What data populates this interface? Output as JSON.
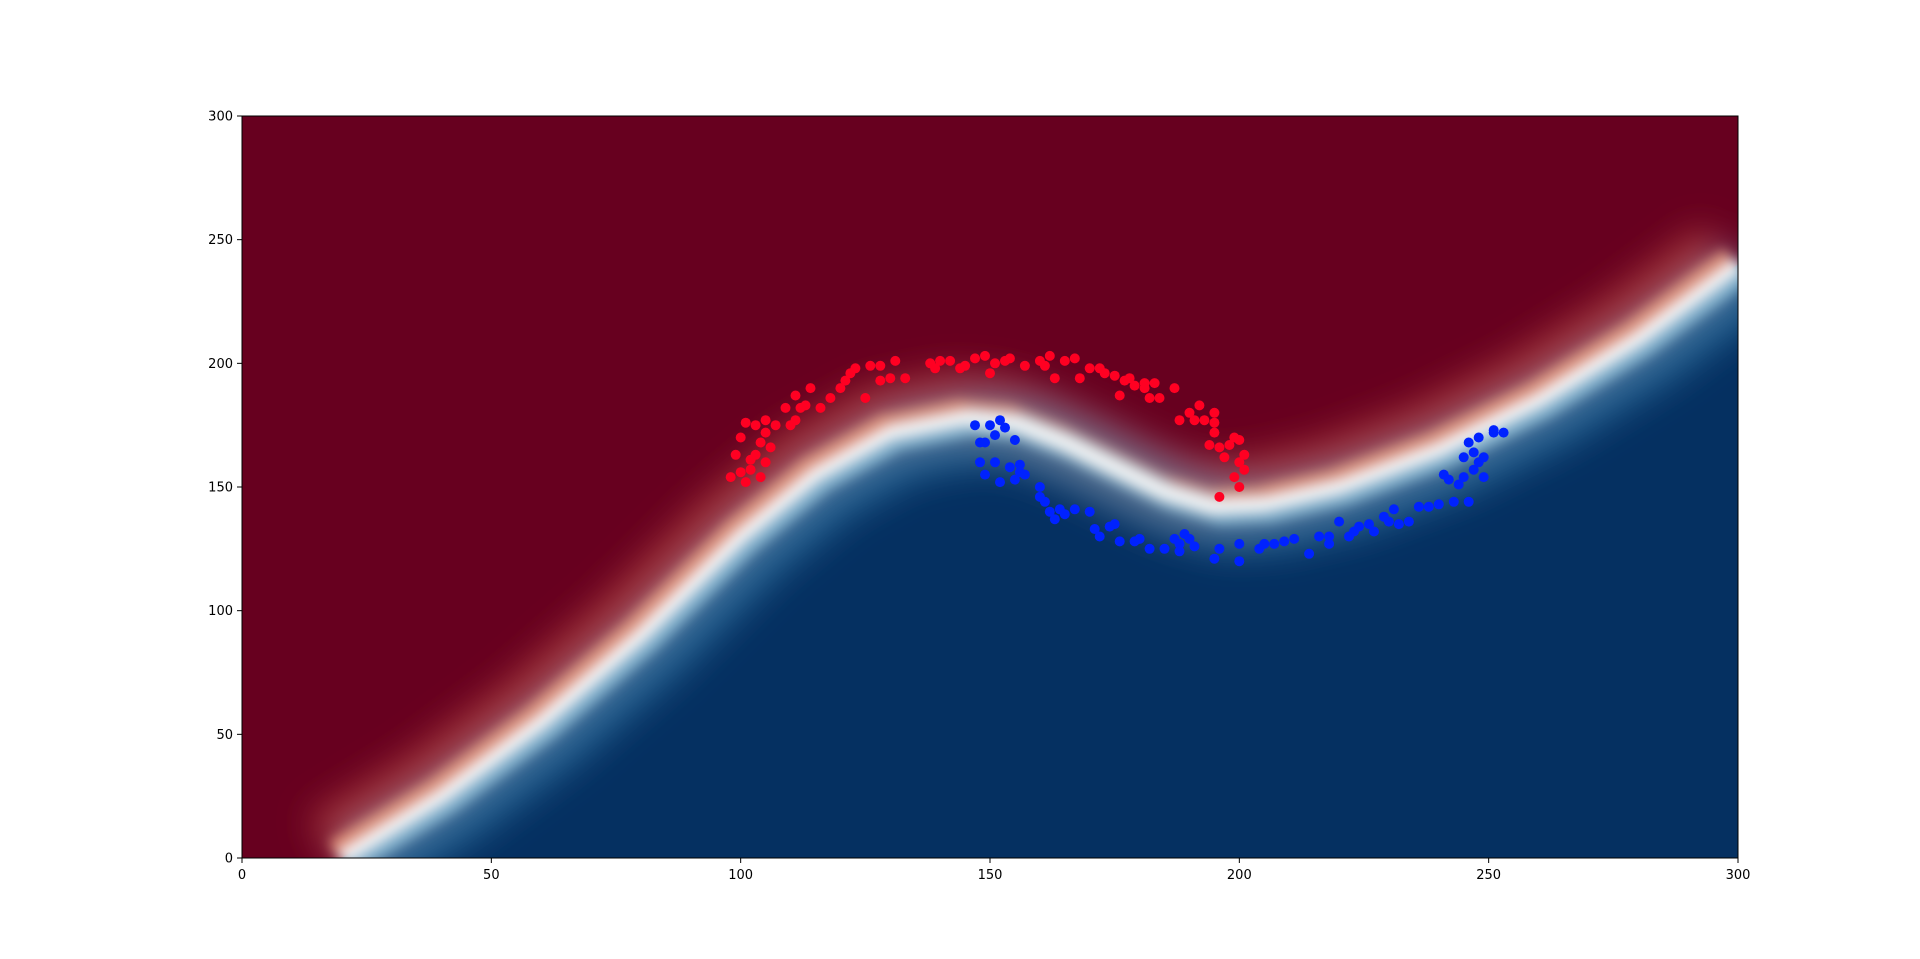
{
  "chart_data": {
    "type": "scatter",
    "title": "",
    "xlabel": "",
    "ylabel": "",
    "xlim": [
      0,
      300
    ],
    "ylim": [
      0,
      300
    ],
    "x_ticks": [
      "0",
      "50",
      "100",
      "150",
      "200",
      "250",
      "300"
    ],
    "y_ticks": [
      "0",
      "50",
      "100",
      "150",
      "200",
      "250",
      "300"
    ],
    "grid": false,
    "legend": "none",
    "background": {
      "kind": "decision-surface",
      "colormap": "RdBu",
      "upper_color": "#67001f",
      "lower_color": "#053061",
      "boundary_color": "#f7f7f7",
      "boundary": [
        [
          20,
          0
        ],
        [
          40,
          25
        ],
        [
          60,
          55
        ],
        [
          80,
          90
        ],
        [
          100,
          130
        ],
        [
          115,
          155
        ],
        [
          130,
          172
        ],
        [
          145,
          178
        ],
        [
          155,
          176
        ],
        [
          165,
          168
        ],
        [
          175,
          158
        ],
        [
          185,
          148
        ],
        [
          195,
          142
        ],
        [
          205,
          143
        ],
        [
          220,
          150
        ],
        [
          240,
          165
        ],
        [
          260,
          185
        ],
        [
          280,
          210
        ],
        [
          300,
          240
        ]
      ]
    },
    "series": [
      {
        "color": "#ff0022",
        "points": [
          [
            98,
            154
          ],
          [
            99,
            163
          ],
          [
            100,
            156
          ],
          [
            100,
            170
          ],
          [
            101,
            152
          ],
          [
            101,
            176
          ],
          [
            102,
            161
          ],
          [
            102,
            157
          ],
          [
            103,
            163
          ],
          [
            103,
            175
          ],
          [
            104,
            168
          ],
          [
            104,
            154
          ],
          [
            105,
            160
          ],
          [
            105,
            172
          ],
          [
            105,
            177
          ],
          [
            106,
            166
          ],
          [
            107,
            175
          ],
          [
            109,
            182
          ],
          [
            110,
            175
          ],
          [
            111,
            187
          ],
          [
            111,
            177
          ],
          [
            112,
            182
          ],
          [
            113,
            183
          ],
          [
            114,
            190
          ],
          [
            116,
            182
          ],
          [
            118,
            186
          ],
          [
            120,
            190
          ],
          [
            121,
            193
          ],
          [
            122,
            196
          ],
          [
            123,
            198
          ],
          [
            125,
            186
          ],
          [
            126,
            199
          ],
          [
            128,
            193
          ],
          [
            128,
            199
          ],
          [
            130,
            194
          ],
          [
            131,
            201
          ],
          [
            133,
            194
          ],
          [
            138,
            200
          ],
          [
            139,
            198
          ],
          [
            140,
            201
          ],
          [
            142,
            201
          ],
          [
            144,
            198
          ],
          [
            145,
            199
          ],
          [
            147,
            202
          ],
          [
            149,
            203
          ],
          [
            150,
            196
          ],
          [
            151,
            200
          ],
          [
            153,
            201
          ],
          [
            154,
            202
          ],
          [
            157,
            199
          ],
          [
            160,
            201
          ],
          [
            161,
            199
          ],
          [
            162,
            203
          ],
          [
            163,
            194
          ],
          [
            165,
            201
          ],
          [
            167,
            202
          ],
          [
            168,
            194
          ],
          [
            170,
            198
          ],
          [
            172,
            198
          ],
          [
            173,
            196
          ],
          [
            175,
            195
          ],
          [
            176,
            187
          ],
          [
            177,
            193
          ],
          [
            178,
            194
          ],
          [
            179,
            191
          ],
          [
            181,
            192
          ],
          [
            181,
            190
          ],
          [
            182,
            186
          ],
          [
            183,
            192
          ],
          [
            184,
            186
          ],
          [
            187,
            190
          ],
          [
            188,
            177
          ],
          [
            190,
            180
          ],
          [
            191,
            177
          ],
          [
            192,
            183
          ],
          [
            193,
            177
          ],
          [
            194,
            167
          ],
          [
            195,
            180
          ],
          [
            195,
            176
          ],
          [
            195,
            172
          ],
          [
            196,
            166
          ],
          [
            196,
            146
          ],
          [
            197,
            162
          ],
          [
            198,
            167
          ],
          [
            199,
            154
          ],
          [
            199,
            170
          ],
          [
            200,
            169
          ],
          [
            200,
            160
          ],
          [
            200,
            150
          ],
          [
            201,
            157
          ],
          [
            201,
            163
          ]
        ]
      },
      {
        "color": "#0022ff",
        "points": [
          [
            147,
            175
          ],
          [
            148,
            168
          ],
          [
            148,
            160
          ],
          [
            149,
            155
          ],
          [
            149,
            168
          ],
          [
            150,
            175
          ],
          [
            151,
            160
          ],
          [
            151,
            171
          ],
          [
            152,
            177
          ],
          [
            152,
            152
          ],
          [
            153,
            174
          ],
          [
            154,
            158
          ],
          [
            155,
            153
          ],
          [
            155,
            169
          ],
          [
            156,
            156
          ],
          [
            156,
            159
          ],
          [
            157,
            155
          ],
          [
            160,
            150
          ],
          [
            160,
            146
          ],
          [
            161,
            144
          ],
          [
            162,
            140
          ],
          [
            163,
            137
          ],
          [
            164,
            141
          ],
          [
            165,
            139
          ],
          [
            167,
            141
          ],
          [
            170,
            140
          ],
          [
            171,
            133
          ],
          [
            172,
            130
          ],
          [
            174,
            134
          ],
          [
            175,
            135
          ],
          [
            176,
            128
          ],
          [
            179,
            128
          ],
          [
            180,
            129
          ],
          [
            182,
            125
          ],
          [
            185,
            125
          ],
          [
            187,
            129
          ],
          [
            188,
            127
          ],
          [
            188,
            124
          ],
          [
            189,
            131
          ],
          [
            190,
            129
          ],
          [
            191,
            126
          ],
          [
            195,
            121
          ],
          [
            196,
            125
          ],
          [
            200,
            120
          ],
          [
            200,
            127
          ],
          [
            204,
            125
          ],
          [
            205,
            127
          ],
          [
            207,
            127
          ],
          [
            209,
            128
          ],
          [
            211,
            129
          ],
          [
            214,
            123
          ],
          [
            216,
            130
          ],
          [
            218,
            130
          ],
          [
            218,
            127
          ],
          [
            220,
            136
          ],
          [
            222,
            130
          ],
          [
            223,
            132
          ],
          [
            224,
            134
          ],
          [
            226,
            135
          ],
          [
            227,
            132
          ],
          [
            229,
            138
          ],
          [
            230,
            136
          ],
          [
            231,
            141
          ],
          [
            232,
            135
          ],
          [
            234,
            136
          ],
          [
            236,
            142
          ],
          [
            238,
            142
          ],
          [
            240,
            143
          ],
          [
            241,
            155
          ],
          [
            242,
            153
          ],
          [
            243,
            144
          ],
          [
            244,
            151
          ],
          [
            245,
            154
          ],
          [
            245,
            162
          ],
          [
            246,
            144
          ],
          [
            246,
            168
          ],
          [
            247,
            157
          ],
          [
            247,
            164
          ],
          [
            248,
            170
          ],
          [
            248,
            160
          ],
          [
            249,
            162
          ],
          [
            249,
            154
          ],
          [
            251,
            173
          ],
          [
            251,
            172
          ],
          [
            253,
            172
          ]
        ]
      }
    ]
  }
}
